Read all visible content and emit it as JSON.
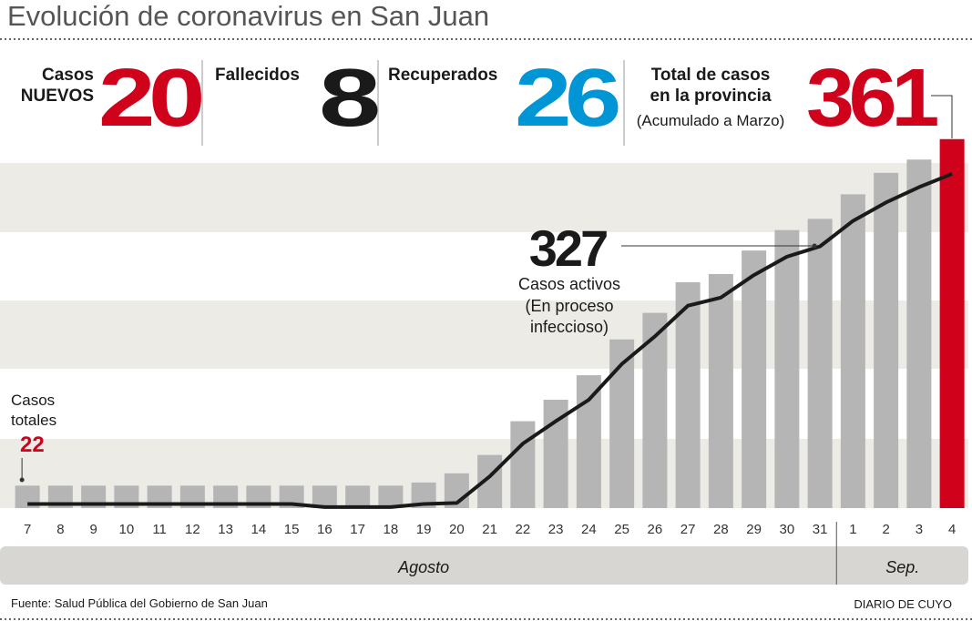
{
  "title": "Evolución de coronavirus en San Juan",
  "stats": [
    {
      "label_lines": [
        "Casos",
        "NUEVOS"
      ],
      "value": 20,
      "color": "#d0021b"
    },
    {
      "label_lines": [
        "Fallecidos"
      ],
      "value": 8,
      "color": "#1a1a1a"
    },
    {
      "label_lines": [
        "Recuperados"
      ],
      "value": 26,
      "color": "#0096d6"
    },
    {
      "label_lines": [
        "Total de casos",
        "en la provincia"
      ],
      "note": "(Acumulado a Marzo)",
      "value": 361,
      "color": "#d0021b"
    }
  ],
  "chart_data": {
    "type": "bar",
    "categories": [
      "7",
      "8",
      "9",
      "10",
      "11",
      "12",
      "13",
      "14",
      "15",
      "16",
      "17",
      "18",
      "19",
      "20",
      "21",
      "22",
      "23",
      "24",
      "25",
      "26",
      "27",
      "28",
      "29",
      "30",
      "31",
      "1",
      "2",
      "3",
      "4"
    ],
    "series": [
      {
        "name": "Casos totales",
        "type": "bar",
        "colors": [
          "#b5b5b5",
          "#b5b5b5",
          "#b5b5b5",
          "#b5b5b5",
          "#b5b5b5",
          "#b5b5b5",
          "#b5b5b5",
          "#b5b5b5",
          "#b5b5b5",
          "#b5b5b5",
          "#b5b5b5",
          "#b5b5b5",
          "#b5b5b5",
          "#b5b5b5",
          "#b5b5b5",
          "#b5b5b5",
          "#b5b5b5",
          "#b5b5b5",
          "#b5b5b5",
          "#b5b5b5",
          "#b5b5b5",
          "#b5b5b5",
          "#b5b5b5",
          "#b5b5b5",
          "#b5b5b5",
          "#b5b5b5",
          "#b5b5b5",
          "#b5b5b5",
          "#d0021b"
        ],
        "values": [
          22,
          22,
          22,
          22,
          22,
          22,
          22,
          22,
          22,
          22,
          22,
          22,
          25,
          34,
          52,
          85,
          106,
          130,
          165,
          191,
          221,
          229,
          252,
          272,
          283,
          307,
          328,
          341,
          361
        ]
      },
      {
        "name": "Casos activos",
        "type": "line",
        "color": "#1a1a1a",
        "sublabel_lines": [
          "(En proceso",
          "infeccioso)"
        ],
        "values": [
          4,
          4,
          4,
          4,
          4,
          4,
          4,
          4,
          4,
          1,
          1,
          1,
          4,
          5,
          31,
          63,
          85,
          106,
          141,
          168,
          198,
          206,
          228,
          246,
          256,
          281,
          299,
          314,
          327
        ]
      }
    ],
    "ylim": [
      0,
      400
    ],
    "month_groups": [
      {
        "label": "Agosto",
        "count": 25
      },
      {
        "label": "Sep.",
        "count": 4
      }
    ]
  },
  "source": "Fuente: Salud Pública del Gobierno de San Juan",
  "brand": "DIARIO DE CUYO"
}
